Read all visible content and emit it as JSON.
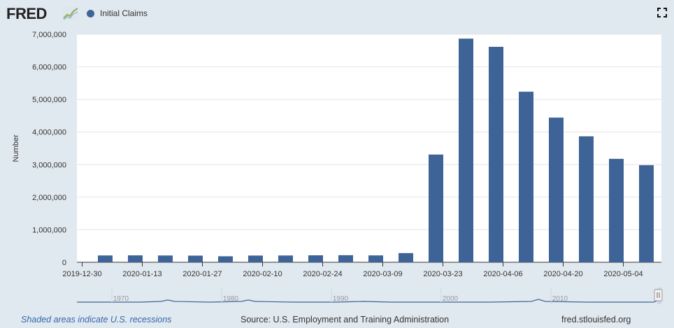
{
  "header": {
    "logo_text": "FRED",
    "legend_label": "Initial Claims",
    "series_color": "#3e6497"
  },
  "footer": {
    "recession_note": "Shaded areas indicate U.S. recessions",
    "source": "Source: U.S. Employment and Training Administration",
    "site": "fred.stlouisfed.org"
  },
  "navigator": {
    "year_labels": [
      "1970",
      "1980",
      "1990",
      "2000",
      "2010"
    ]
  },
  "chart_data": {
    "type": "bar",
    "series": [
      {
        "name": "Initial Claims",
        "values": [
          209000,
          212000,
          208000,
          204000,
          184000,
          206000,
          208000,
          214000,
          217000,
          211000,
          282000,
          3307000,
          6867000,
          6615000,
          5237000,
          4442000,
          3867000,
          3176000,
          2981000
        ]
      }
    ],
    "categories": [
      "2020-01-04",
      "2020-01-11",
      "2020-01-18",
      "2020-01-25",
      "2020-02-01",
      "2020-02-08",
      "2020-02-15",
      "2020-02-22",
      "2020-02-29",
      "2020-03-07",
      "2020-03-14",
      "2020-03-21",
      "2020-03-28",
      "2020-04-04",
      "2020-04-11",
      "2020-04-18",
      "2020-04-25",
      "2020-05-02",
      "2020-05-09"
    ],
    "x_tick_labels": [
      "2019-12-30",
      "2020-01-13",
      "2020-01-27",
      "2020-02-10",
      "2020-02-24",
      "2020-03-09",
      "2020-03-23",
      "2020-04-06",
      "2020-04-20",
      "2020-05-04"
    ],
    "y_tick_labels": [
      "0",
      "1,000,000",
      "2,000,000",
      "3,000,000",
      "4,000,000",
      "5,000,000",
      "6,000,000",
      "7,000,000"
    ],
    "ylabel": "Number",
    "ylim": [
      0,
      7000000
    ],
    "grid": true,
    "legend_position": "top-left"
  }
}
